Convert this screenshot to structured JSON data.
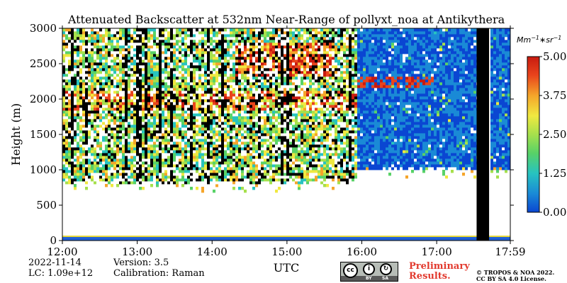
{
  "chart_data": {
    "type": "heatmap",
    "title": "Attenuated Backscatter at 532nm Near-Range of pollyxt_noa at Antikythera",
    "xlabel": "UTC",
    "ylabel": "Height (m)",
    "xlim": [
      "12:00",
      "17:59"
    ],
    "ylim": [
      0,
      3000
    ],
    "x_ticks": [
      "12:00",
      "13:00",
      "14:00",
      "15:00",
      "16:00",
      "17:00",
      "17:59"
    ],
    "y_ticks": [
      0,
      500,
      1000,
      1500,
      2000,
      2500,
      3000
    ],
    "colorbar": {
      "unit": "Mm^{-1}*sr^{-1}",
      "min": 0.0,
      "max": 5.0,
      "tick_labels": [
        "0.00",
        "1.25",
        "2.50",
        "3.75",
        "5.00"
      ],
      "colormap": [
        "#0a46d2",
        "#1a8ad6",
        "#27c3c0",
        "#58d267",
        "#a6e04c",
        "#f0e840",
        "#f5a52a",
        "#e9441c",
        "#c81a10"
      ]
    },
    "features": [
      {
        "label": "cloud-free region below cloud base",
        "height_range_m": [
          0,
          800
        ]
      },
      {
        "label": "surface near-range layer",
        "height_range_m": [
          0,
          60
        ]
      },
      {
        "label": "cloud base approx",
        "height_m": 800,
        "time_range": [
          "12:00",
          "15:30"
        ]
      },
      {
        "label": "cloud base approx",
        "height_m": 1000,
        "time_range": [
          "16:00",
          "17:59"
        ]
      },
      {
        "label": "no data gap",
        "time_range": [
          "17:32",
          "17:42"
        ]
      }
    ]
  },
  "footer": {
    "date": "2022-11-14",
    "version": "Version: 3.5",
    "lc": "LC: 1.09e+12",
    "calibration": "Calibration: Raman",
    "preliminary_line1": "Preliminary",
    "preliminary_line2": "Results.",
    "copyright_line1": "© TROPOS & NOA 2022.",
    "copyright_line2": "CC BY SA 4.0 License.",
    "license_badge": {
      "by": "BY",
      "sa": "SA"
    }
  }
}
